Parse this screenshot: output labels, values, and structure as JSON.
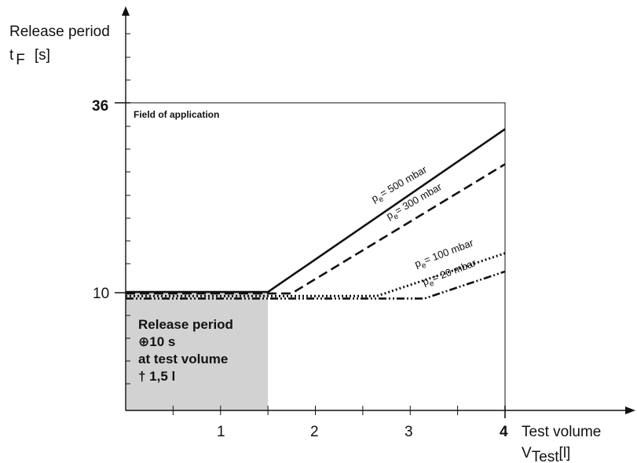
{
  "chart_data": {
    "type": "line",
    "ylabel_line1": "Release period",
    "ylabel_symbol": "t",
    "ylabel_subscript": "F",
    "ylabel_unit": "[s]",
    "xlabel_line1": "Test volume",
    "xlabel_symbol": "V",
    "xlabel_subscript": "Test",
    "xlabel_unit": "[l]",
    "xlim": [
      0,
      4
    ],
    "ylim": [
      0,
      36
    ],
    "x_ticks": [
      "1",
      "2",
      "3",
      "4"
    ],
    "y_tick_10": "10",
    "y_tick_36": "36",
    "field_label": "Field of application",
    "region_text": [
      "Release period",
      "⊕10 s",
      "at test volume",
      "† 1,5 l"
    ],
    "region_color": "#d2d2d2",
    "series": [
      {
        "label_prefix": "p",
        "label_sub": "e",
        "label_value": "= 500 mbar",
        "style": "solid",
        "points": [
          [
            0,
            10.1
          ],
          [
            1.5,
            10.1
          ],
          [
            4,
            32.4
          ]
        ]
      },
      {
        "label_prefix": "p",
        "label_sub": "e",
        "label_value": "= 300 mbar",
        "style": "dashed",
        "points": [
          [
            0,
            9.9
          ],
          [
            1.75,
            9.9
          ],
          [
            4,
            27.6
          ]
        ]
      },
      {
        "label_prefix": "p",
        "label_sub": "e",
        "label_value": "= 100 mbar",
        "style": "dotted",
        "points": [
          [
            0,
            9.55
          ],
          [
            2.65,
            9.55
          ],
          [
            4,
            15.4
          ]
        ]
      },
      {
        "label_prefix": "p",
        "label_sub": "e",
        "label_value": "= 20 mbar",
        "style": "dashdot",
        "points": [
          [
            0,
            9.2
          ],
          [
            3.15,
            9.2
          ],
          [
            4,
            12.9
          ]
        ]
      }
    ]
  }
}
